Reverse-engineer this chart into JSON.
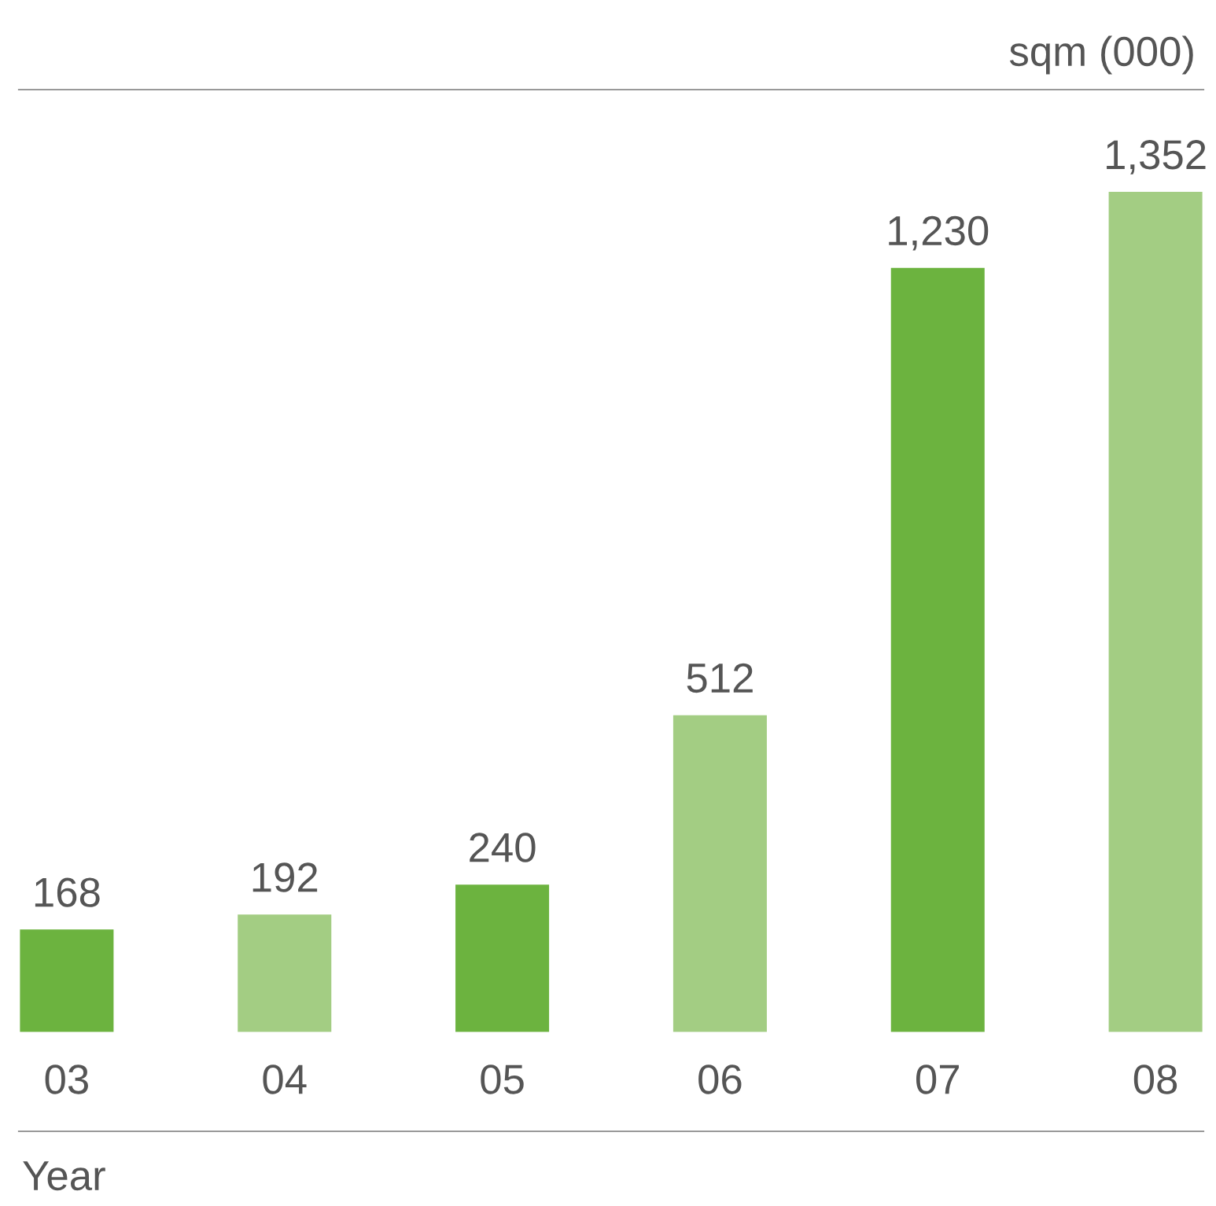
{
  "chart_data": {
    "type": "bar",
    "ylabel": "sqm (000)",
    "xlabel": "Year",
    "categories": [
      "03",
      "04",
      "05",
      "06",
      "07",
      "08"
    ],
    "values": [
      168,
      192,
      240,
      512,
      1230,
      1352
    ],
    "colors": [
      "#6cb33f",
      "#a3cd83",
      "#6cb33f",
      "#a3cd83",
      "#6cb33f",
      "#a3cd83"
    ],
    "value_labels": [
      "168",
      "192",
      "240",
      "512",
      "1,230",
      "1,352"
    ],
    "grid": false,
    "legend": false
  }
}
